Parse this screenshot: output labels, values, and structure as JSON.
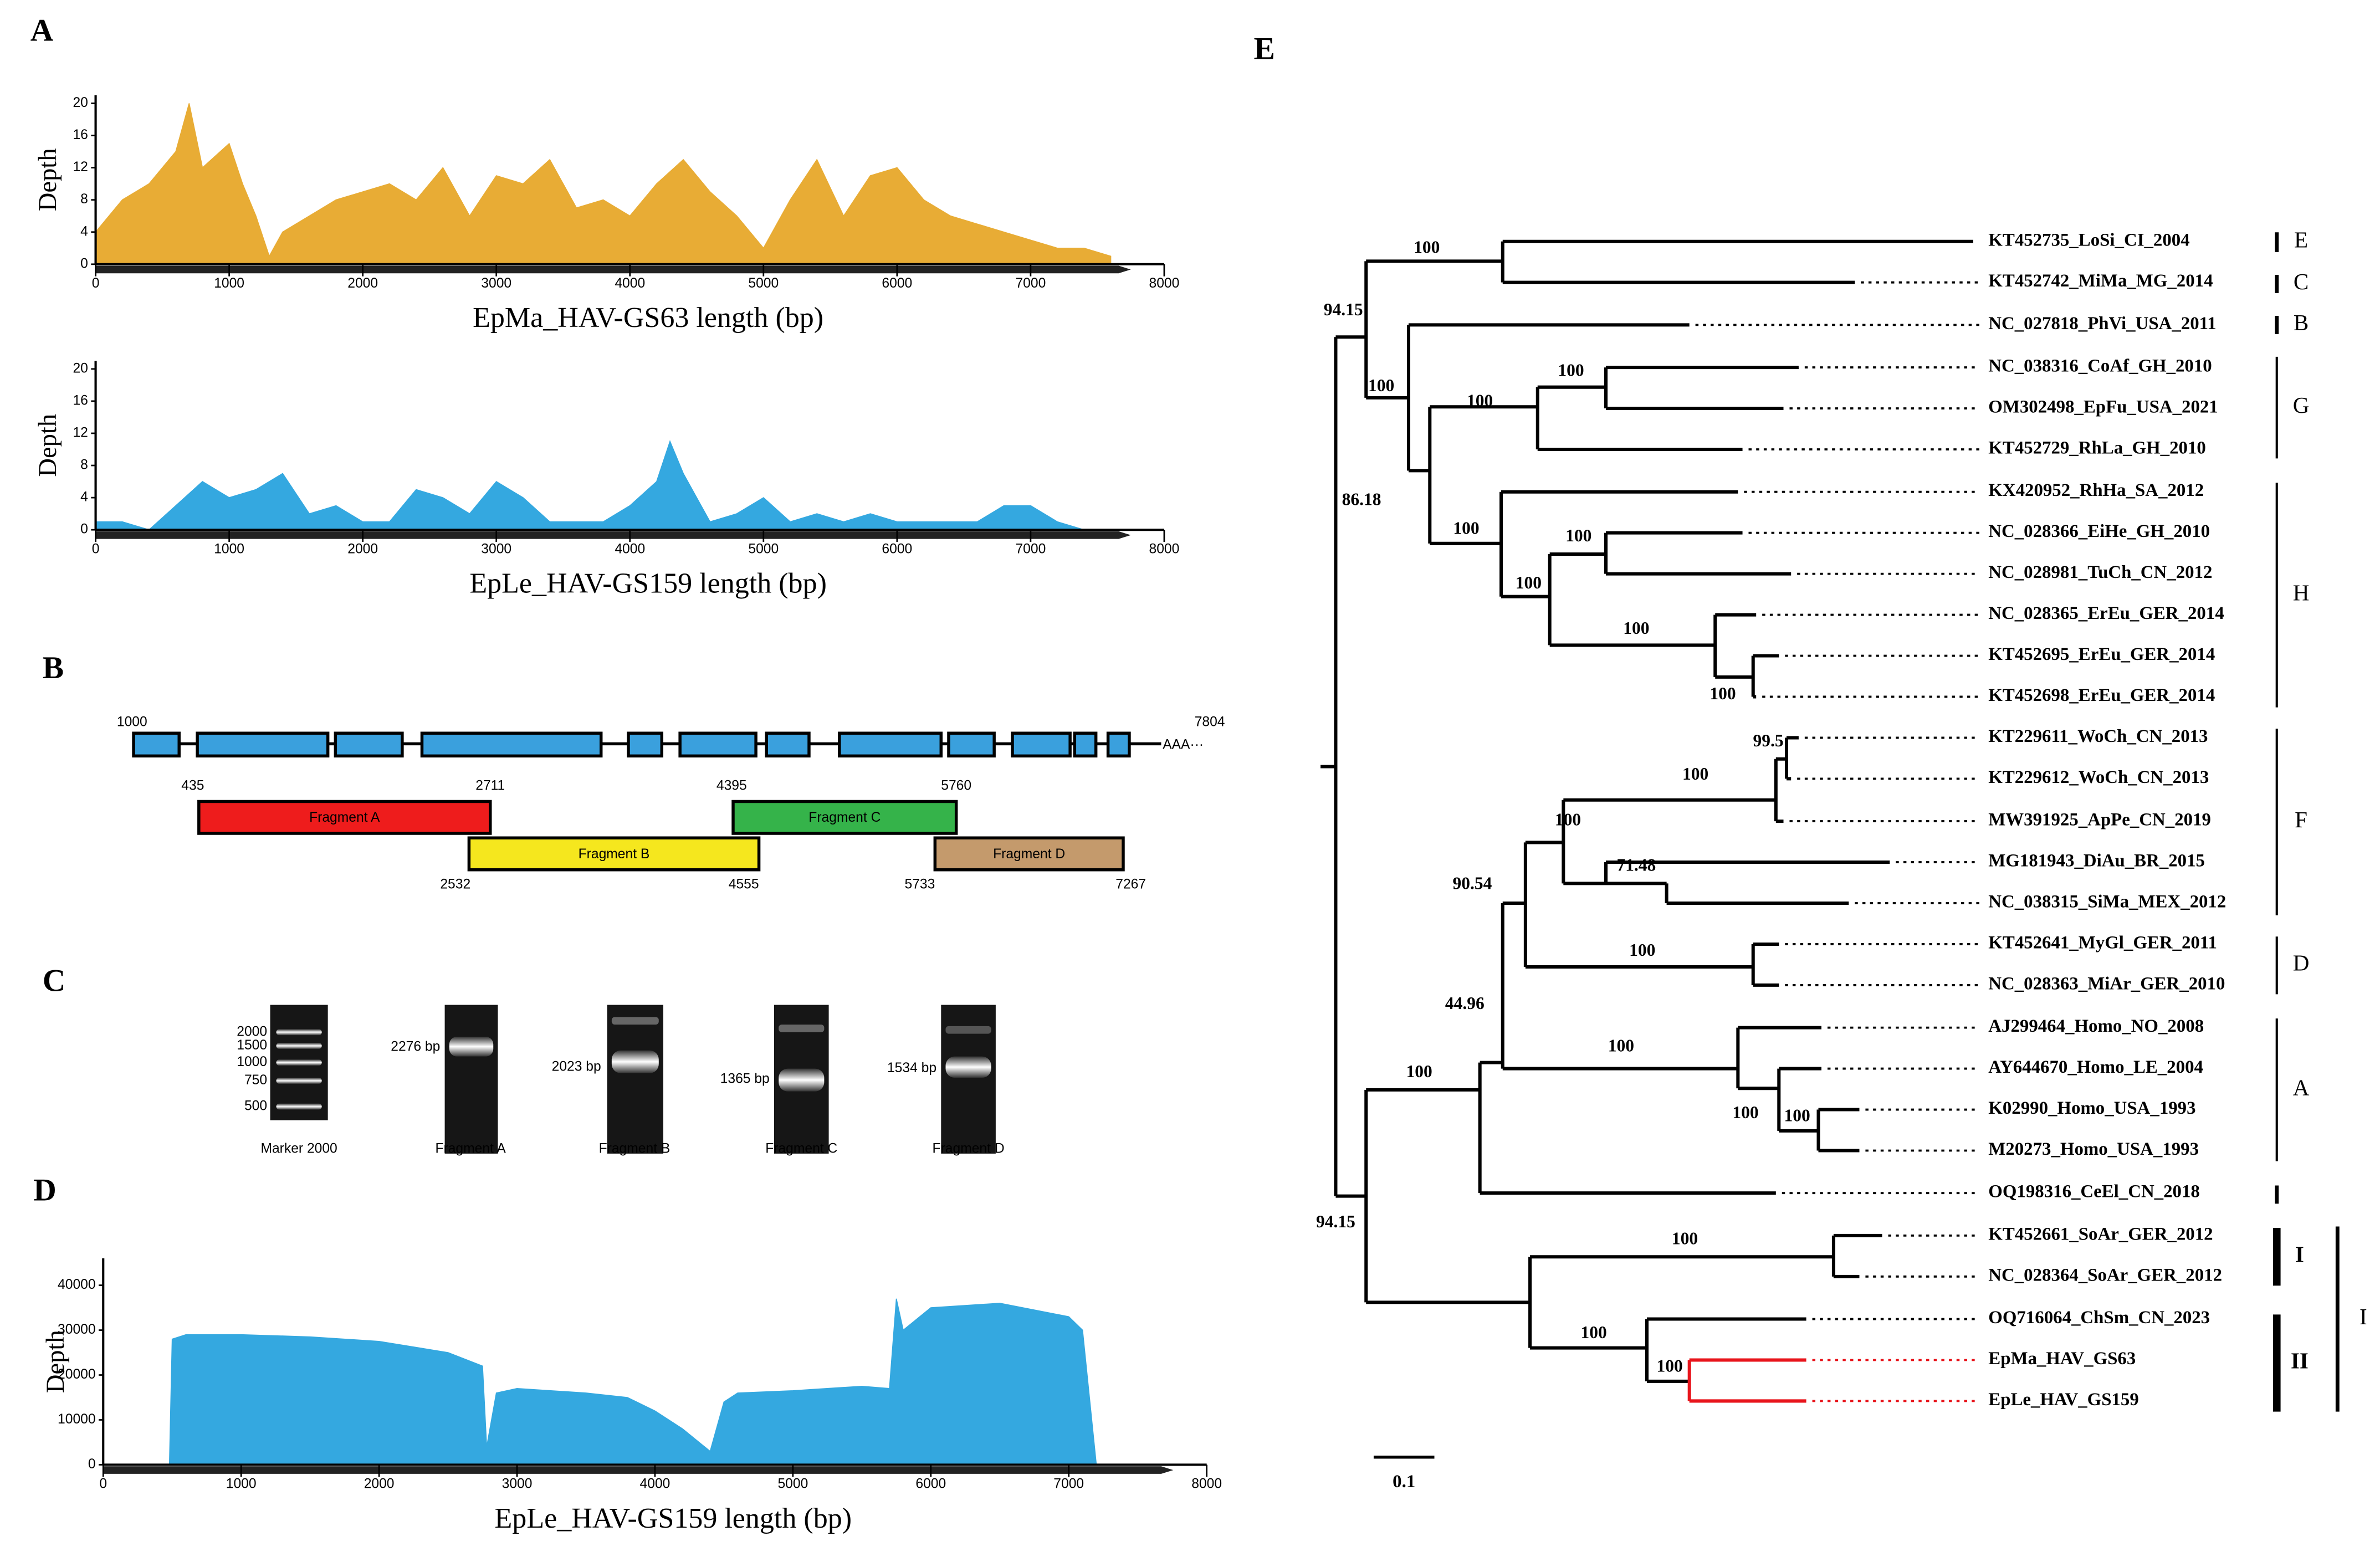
{
  "panel_labels": [
    "A",
    "B",
    "C",
    "D",
    "E"
  ],
  "chart_data": [
    {
      "type": "area",
      "ylabel": "Depth",
      "xlabel": "EpMa_HAV-GS63 length (bp)",
      "color": "#e8ac35",
      "x": [
        0,
        200,
        400,
        600,
        700,
        800,
        1000,
        1100,
        1200,
        1300,
        1400,
        1600,
        1800,
        2000,
        2200,
        2400,
        2600,
        2800,
        3000,
        3200,
        3400,
        3600,
        3800,
        4000,
        4200,
        4400,
        4600,
        4800,
        5000,
        5200,
        5400,
        5600,
        5800,
        6000,
        6200,
        6400,
        6600,
        6800,
        7000,
        7200,
        7400,
        7600
      ],
      "values": [
        4,
        8,
        10,
        14,
        20,
        12,
        15,
        10,
        6,
        1,
        4,
        6,
        8,
        9,
        10,
        8,
        12,
        6,
        11,
        10,
        13,
        7,
        8,
        6,
        10,
        13,
        9,
        6,
        2,
        8,
        13,
        6,
        11,
        12,
        8,
        6,
        5,
        4,
        3,
        2,
        2,
        1
      ],
      "xlim": [
        0,
        8000
      ],
      "ylim": [
        0,
        21
      ],
      "xticks": [
        0,
        1000,
        2000,
        3000,
        4000,
        5000,
        6000,
        7000,
        8000
      ],
      "yticks": [
        0,
        4,
        8,
        12,
        16,
        20
      ]
    },
    {
      "type": "area",
      "ylabel": "Depth",
      "xlabel": "EpLe_HAV-GS159 length (bp)",
      "color": "#34a8e0",
      "x": [
        0,
        200,
        400,
        600,
        800,
        1000,
        1200,
        1400,
        1600,
        1800,
        2000,
        2200,
        2400,
        2600,
        2800,
        3000,
        3200,
        3400,
        3600,
        3800,
        4000,
        4200,
        4300,
        4400,
        4600,
        4800,
        5000,
        5200,
        5400,
        5600,
        5800,
        6000,
        6200,
        6400,
        6600,
        6800,
        7000,
        7200,
        7400
      ],
      "values": [
        1,
        1,
        0,
        3,
        6,
        4,
        5,
        7,
        2,
        3,
        1,
        1,
        5,
        4,
        2,
        6,
        4,
        1,
        1,
        1,
        3,
        6,
        11,
        7,
        1,
        2,
        4,
        1,
        2,
        1,
        2,
        1,
        1,
        1,
        1,
        3,
        3,
        1,
        0
      ],
      "xlim": [
        0,
        8000
      ],
      "ylim": [
        0,
        21
      ],
      "xticks": [
        0,
        1000,
        2000,
        3000,
        4000,
        5000,
        6000,
        7000,
        8000
      ],
      "yticks": [
        0,
        4,
        8,
        12,
        16,
        20
      ]
    },
    {
      "type": "area",
      "ylabel": "Depth",
      "xlabel": "EpLe_HAV-GS159 length (bp)",
      "color": "#34a8e0",
      "x": [
        480,
        500,
        600,
        1000,
        1500,
        2000,
        2500,
        2750,
        2780,
        2850,
        3000,
        3500,
        3800,
        4000,
        4200,
        4400,
        4500,
        4600,
        5000,
        5500,
        5700,
        5750,
        5800,
        6000,
        6500,
        7000,
        7100,
        7200
      ],
      "values": [
        0,
        28000,
        29000,
        29000,
        28500,
        27500,
        25000,
        22000,
        4000,
        16000,
        17000,
        16000,
        15000,
        12000,
        8000,
        3000,
        14000,
        16000,
        16500,
        17500,
        17000,
        37000,
        30000,
        35000,
        36000,
        33000,
        30000,
        0
      ],
      "xlim": [
        0,
        8000
      ],
      "ylim": [
        0,
        46000
      ],
      "xticks": [
        0,
        1000,
        2000,
        3000,
        4000,
        5000,
        6000,
        7000,
        8000
      ],
      "yticks": [
        0,
        10000,
        20000,
        30000,
        40000
      ]
    }
  ],
  "genome_map": {
    "start": "1000",
    "end": "7804",
    "tail": "AAA···",
    "gene_color": "#3aa0dd",
    "fragments": [
      {
        "name": "Fragment A",
        "start": "435",
        "end": "2711",
        "color": "#ee1c1c"
      },
      {
        "name": "Fragment B",
        "start": "2532",
        "end": "4555",
        "color": "#f5e71e"
      },
      {
        "name": "Fragment C",
        "start": "4395",
        "end": "5760",
        "color": "#35b34a"
      },
      {
        "name": "Fragment D",
        "start": "5733",
        "end": "7267",
        "color": "#c49a6c"
      }
    ]
  },
  "gel": {
    "marker_name": "Marker 2000",
    "marker_sizes": [
      "2000",
      "1500",
      "1000",
      "750",
      "500"
    ],
    "lanes": [
      {
        "name": "Fragment A",
        "size": "2276 bp"
      },
      {
        "name": "Fragment B",
        "size": "2023 bp"
      },
      {
        "name": "Fragment C",
        "size": "1365 bp"
      },
      {
        "name": "Fragment D",
        "size": "1534 bp"
      }
    ]
  },
  "tree": {
    "leaves": [
      {
        "name": "KT452735_LoSi_CI_2004",
        "color": "#000000"
      },
      {
        "name": "KT452742_MiMa_MG_2014",
        "color": "#000000"
      },
      {
        "name": "NC_027818_PhVi_USA_2011",
        "color": "#000000"
      },
      {
        "name": "NC_038316_CoAf_GH_2010",
        "color": "#000000"
      },
      {
        "name": "OM302498_EpFu_USA_2021",
        "color": "#000000"
      },
      {
        "name": "KT452729_RhLa_GH_2010",
        "color": "#000000"
      },
      {
        "name": "KX420952_RhHa_SA_2012",
        "color": "#000000"
      },
      {
        "name": "NC_028366_EiHe_GH_2010",
        "color": "#000000"
      },
      {
        "name": "NC_028981_TuCh_CN_2012",
        "color": "#000000"
      },
      {
        "name": "NC_028365_ErEu_GER_2014",
        "color": "#000000"
      },
      {
        "name": "KT452695_ErEu_GER_2014",
        "color": "#000000"
      },
      {
        "name": "KT452698_ErEu_GER_2014",
        "color": "#000000"
      },
      {
        "name": "KT229611_WoCh_CN_2013",
        "color": "#000000"
      },
      {
        "name": "KT229612_WoCh_CN_2013",
        "color": "#000000"
      },
      {
        "name": "MW391925_ApPe_CN_2019",
        "color": "#000000"
      },
      {
        "name": "MG181943_DiAu_BR_2015",
        "color": "#000000"
      },
      {
        "name": "NC_038315_SiMa_MEX_2012",
        "color": "#000000"
      },
      {
        "name": "KT452641_MyGl_GER_2011",
        "color": "#000000"
      },
      {
        "name": "NC_028363_MiAr_GER_2010",
        "color": "#000000"
      },
      {
        "name": "AJ299464_Homo_NO_2008",
        "color": "#000000"
      },
      {
        "name": "AY644670_Homo_LE_2004",
        "color": "#000000"
      },
      {
        "name": "K02990_Homo_USA_1993",
        "color": "#000000"
      },
      {
        "name": "M20273_Homo_USA_1993",
        "color": "#000000"
      },
      {
        "name": "OQ198316_CeEl_CN_2018",
        "color": "#000000"
      },
      {
        "name": "KT452661_SoAr_GER_2012",
        "color": "#000000"
      },
      {
        "name": "NC_028364_SoAr_GER_2012",
        "color": "#000000"
      },
      {
        "name": "OQ716064_ChSm_CN_2023",
        "color": "#000000"
      },
      {
        "name": "EpMa_HAV_GS63",
        "color": "#e8141b"
      },
      {
        "name": "EpLe_HAV_GS159",
        "color": "#e8141b"
      }
    ],
    "bootstrap": [
      "100",
      "94.15",
      "100",
      "86.18",
      "100",
      "100",
      "100",
      "100",
      "100",
      "100",
      "100",
      "99.5",
      "100",
      "100",
      "71.48",
      "90.54",
      "44.96",
      "100",
      "100",
      "100",
      "100",
      "100",
      "94.15",
      "100",
      "100",
      "100"
    ],
    "clades": [
      "E",
      "C",
      "B",
      "G",
      "H",
      "F",
      "D",
      "A",
      "I",
      "II",
      "I"
    ],
    "scale": "0.1"
  }
}
